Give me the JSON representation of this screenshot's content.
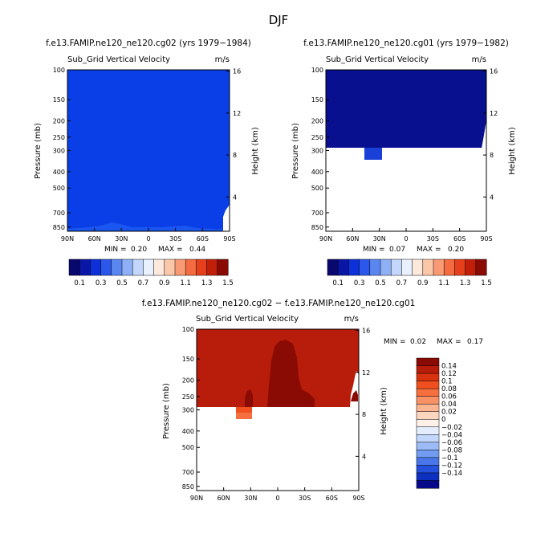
{
  "figure_title": "DJF",
  "panels": [
    {
      "title": "f.e13.FAMIP.ne120_ne120.cg02 (yrs 1979−1984)",
      "subtitle_left": "Sub_Grid Vertical Velocity",
      "subtitle_right": "m/s",
      "min_label": "MIN =",
      "min_value": "0.20",
      "max_label": "MAX =",
      "max_value": "0.44"
    },
    {
      "title": "f.e13.FAMIP.ne120_ne120.cg01 (yrs 1979−1982)",
      "subtitle_left": "Sub_Grid Vertical Velocity",
      "subtitle_right": "m/s",
      "min_label": "MIN =",
      "min_value": "0.07",
      "max_label": "MAX =",
      "max_value": "0.20"
    },
    {
      "title": "f.e13.FAMIP.ne120_ne120.cg02 − f.e13.FAMIP.ne120_ne120.cg01",
      "subtitle_left": "Sub_Grid Vertical Velocity",
      "subtitle_right": "m/s",
      "min_label": "MIN =",
      "min_value": "0.02",
      "max_label": "MAX =",
      "max_value": "0.17"
    }
  ],
  "axes": {
    "ylabel": "Pressure (mb)",
    "ylabel_right": "Height (km)",
    "pressure_ticks": [
      "100",
      "150",
      "200",
      "250",
      "300",
      "400",
      "500",
      "700",
      "850"
    ],
    "height_ticks": [
      "16",
      "12",
      "8",
      "4"
    ],
    "lat_ticks": [
      "90N",
      "60N",
      "30N",
      "0",
      "30S",
      "60S",
      "90S"
    ]
  },
  "colorbar_top": {
    "labels": [
      "0.1",
      "0.3",
      "0.5",
      "0.7",
      "0.9",
      "1.1",
      "1.3",
      "1.5"
    ],
    "colors": [
      "#08086e",
      "#0a17a6",
      "#0d30d8",
      "#2b58ea",
      "#5a86f0",
      "#8eb0f6",
      "#c3d6fb",
      "#e9f1fe",
      "#fde9dc",
      "#fbc7a9",
      "#f89a73",
      "#f46a41",
      "#e5401b",
      "#c21f0b",
      "#8a0a04"
    ]
  },
  "colorbar_bottom": {
    "labels": [
      "0.14",
      "0.12",
      "0.1",
      "0.08",
      "0.06",
      "0.04",
      "0.02",
      "0",
      "−0.02",
      "−0.04",
      "−0.06",
      "−0.08",
      "−0.1",
      "−0.12",
      "−0.14"
    ],
    "colors": [
      "#8a0a04",
      "#b81c0a",
      "#d8320f",
      "#f0501f",
      "#f66f3f",
      "#f99167",
      "#fbb590",
      "#fdd6bf",
      "#fdf0e8",
      "#e4edfd",
      "#c3d6fb",
      "#9dbcf7",
      "#729cf1",
      "#4977ea",
      "#2550dc",
      "#0d30c0",
      "#08088a"
    ]
  },
  "chart_data": [
    {
      "type": "heatmap",
      "title": "f.e13.FAMIP.ne120_ne120.cg02 (yrs 1979−1984)",
      "xlabel": "",
      "ylabel": "Pressure (mb)",
      "x_ticks": [
        "90N",
        "60N",
        "30N",
        "0",
        "30S",
        "60S",
        "90S"
      ],
      "y_ticks": [
        100,
        150,
        200,
        250,
        300,
        400,
        500,
        700,
        850
      ],
      "y_scale": "log",
      "min": 0.2,
      "max": 0.44,
      "contour_levels": [
        0.1,
        0.2,
        0.3,
        0.4,
        0.5,
        0.6,
        0.7,
        0.8,
        0.9,
        1.0,
        1.1,
        1.2,
        1.3,
        1.4,
        1.5
      ],
      "description_values": {
        "dominant_level": "0.3-0.4",
        "pressure_range": [
          100,
          900
        ]
      }
    },
    {
      "type": "heatmap",
      "title": "f.e13.FAMIP.ne120_ne120.cg01 (yrs 1979−1982)",
      "xlabel": "",
      "ylabel": "Pressure (mb)",
      "x_ticks": [
        "90N",
        "60N",
        "30N",
        "0",
        "30S",
        "60S",
        "90S"
      ],
      "y_ticks": [
        100,
        150,
        200,
        250,
        300,
        400,
        500,
        700,
        850
      ],
      "y_scale": "log",
      "min": 0.07,
      "max": 0.2,
      "contour_levels": [
        0.1,
        0.2,
        0.3,
        0.4,
        0.5,
        0.6,
        0.7,
        0.8,
        0.9,
        1.0,
        1.1,
        1.2,
        1.3,
        1.4,
        1.5
      ],
      "description_values": {
        "dominant_level": "0.1-0.2",
        "data_bottom_mb": 300
      }
    },
    {
      "type": "heatmap",
      "title": "f.e13.FAMIP.ne120_ne120.cg02 − f.e13.FAMIP.ne120_ne120.cg01",
      "xlabel": "",
      "ylabel": "Pressure (mb)",
      "x_ticks": [
        "90N",
        "60N",
        "30N",
        "0",
        "30S",
        "60S",
        "90S"
      ],
      "y_ticks": [
        100,
        150,
        200,
        250,
        300,
        400,
        500,
        700,
        850
      ],
      "y_scale": "log",
      "min": 0.02,
      "max": 0.17,
      "contour_levels": [
        -0.14,
        -0.12,
        -0.1,
        -0.08,
        -0.06,
        -0.04,
        -0.02,
        0,
        0.02,
        0.04,
        0.06,
        0.08,
        0.1,
        0.12,
        0.14
      ],
      "description_values": {
        "dominant_level": "0.12-0.14",
        "max_region_level": ">0.14",
        "data_bottom_mb": 300
      }
    }
  ]
}
